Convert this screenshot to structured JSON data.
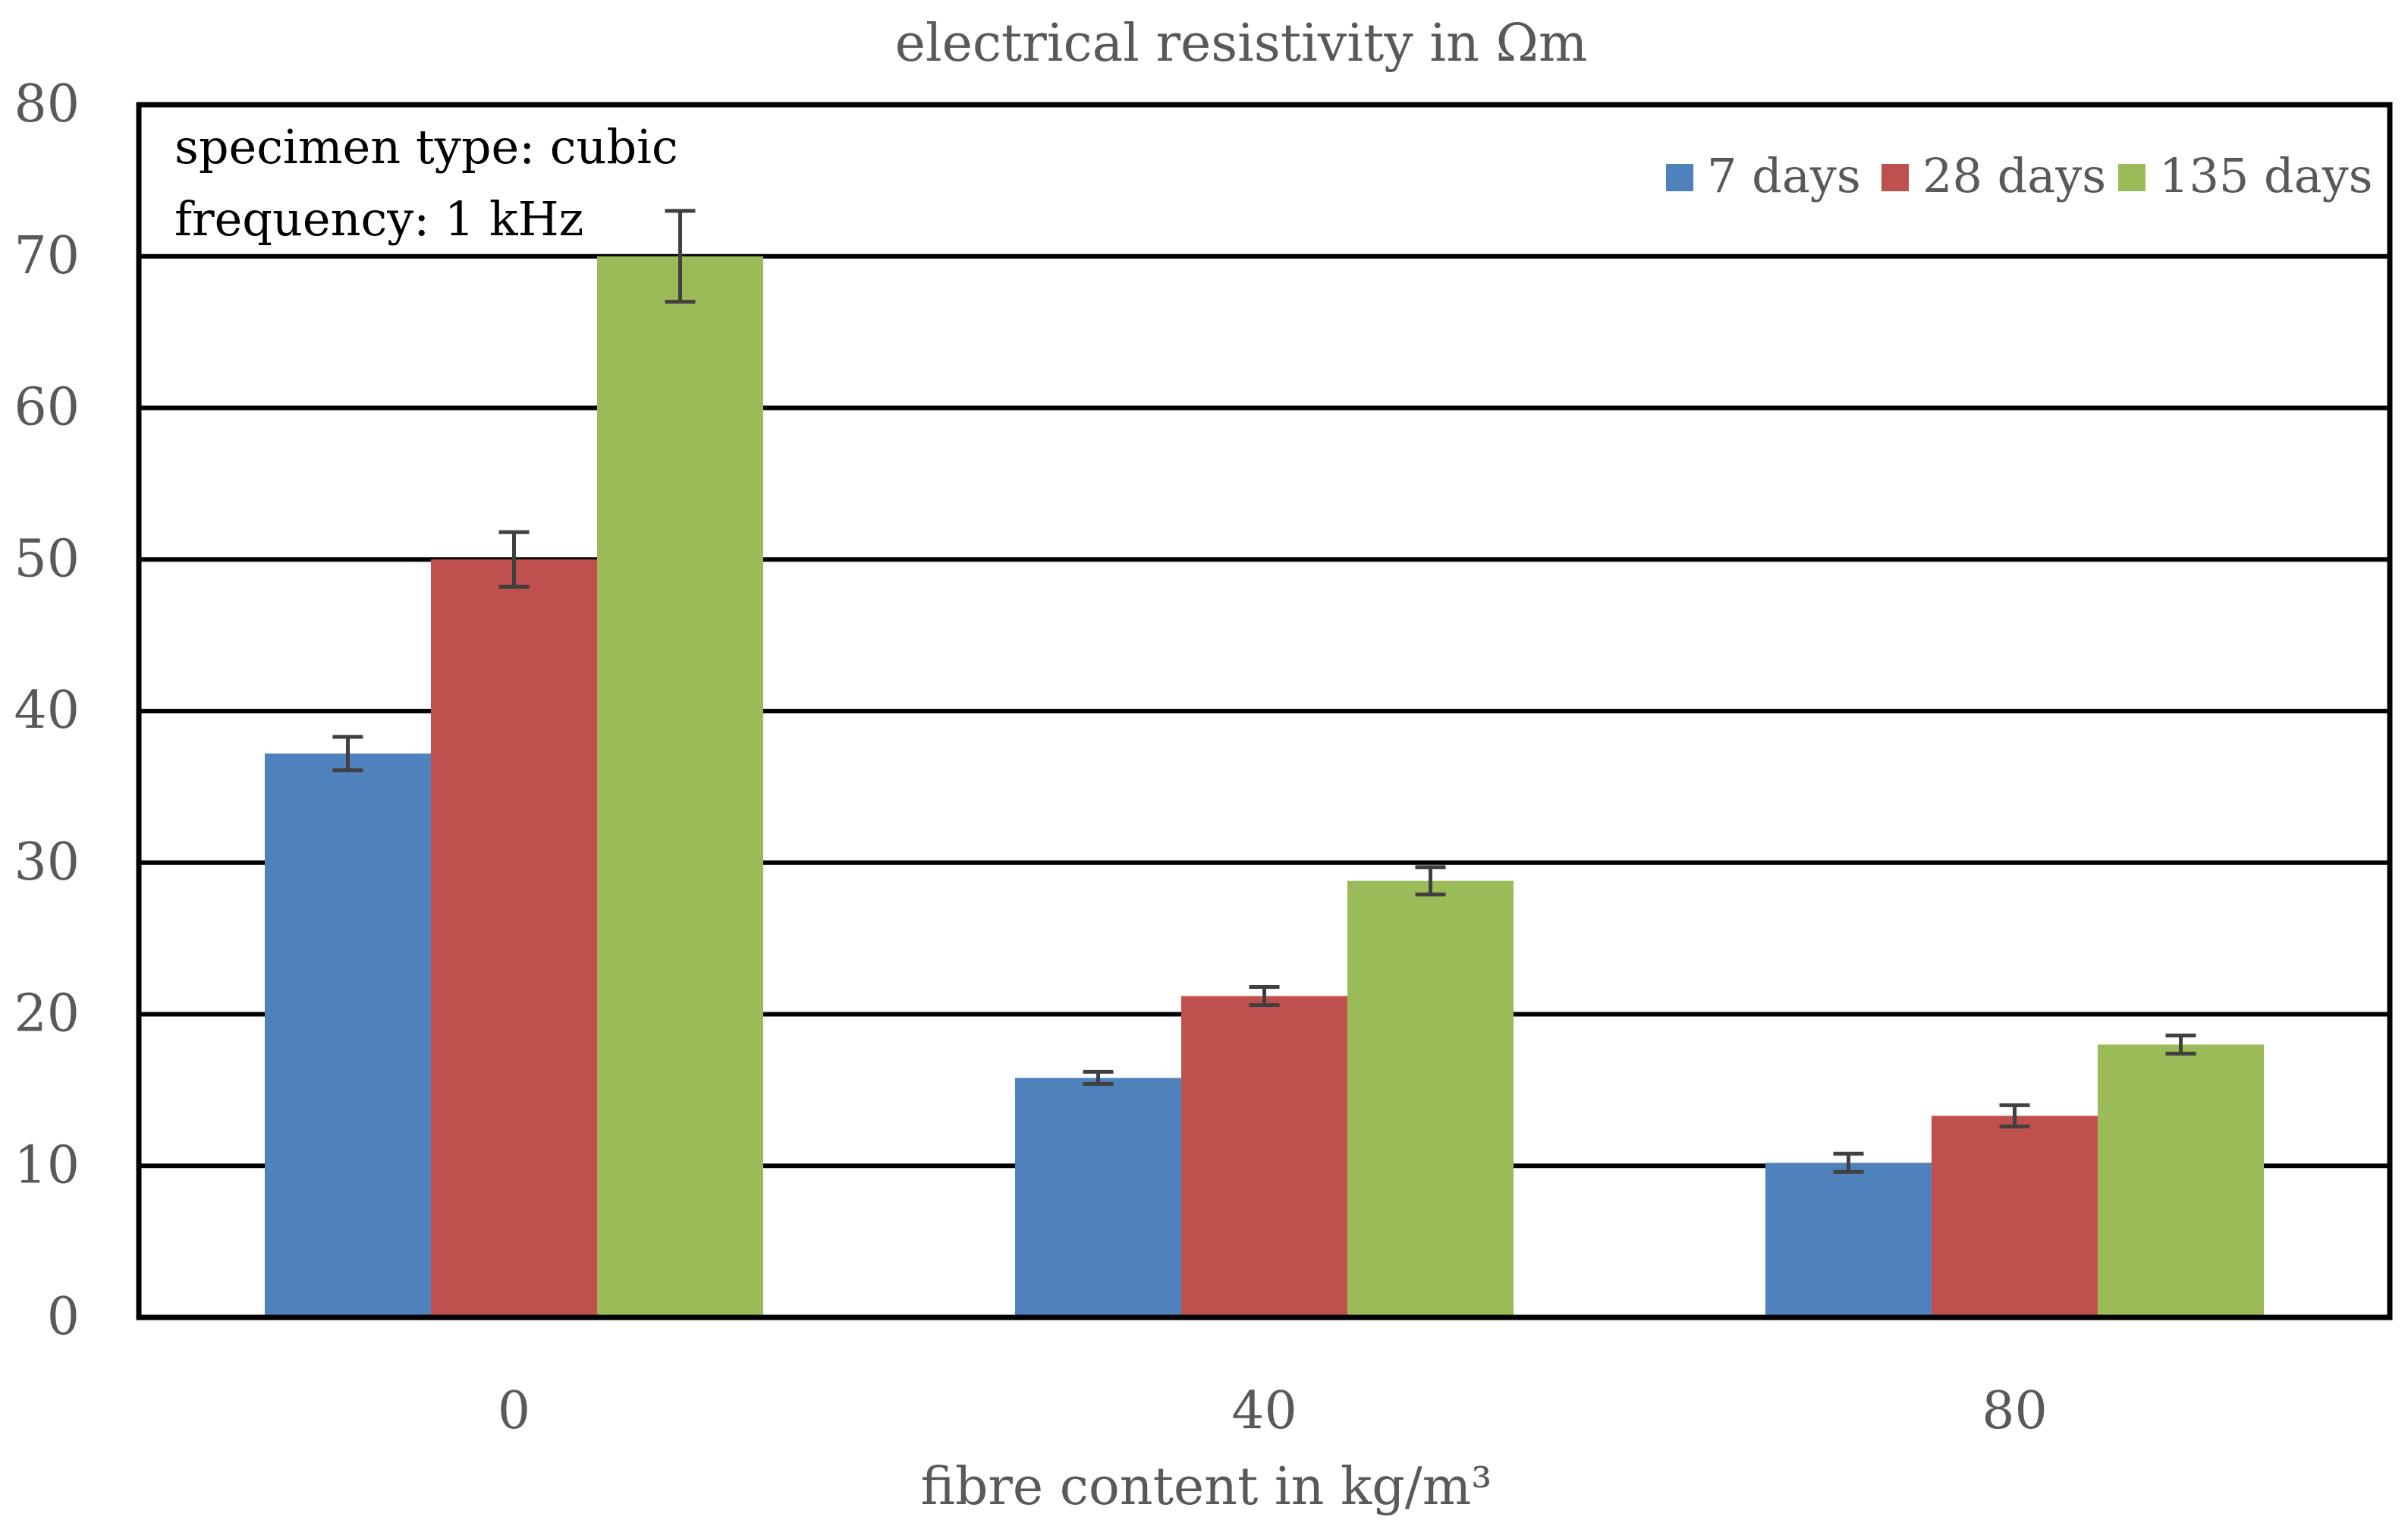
{
  "chart_data": {
    "type": "bar",
    "title": "electrical resistivity in Ωm",
    "xlabel": "fibre content in kg/m³",
    "ylabel": "",
    "categories": [
      "0",
      "40",
      "80"
    ],
    "ylim": [
      0,
      80
    ],
    "yticks": [
      "0",
      "10",
      "20",
      "30",
      "40",
      "50",
      "60",
      "70",
      "80"
    ],
    "grid": true,
    "legend_position": "top-right",
    "annotations": [
      "specimen type: cubic",
      "frequency: 1 kHz"
    ],
    "series": [
      {
        "name": "7 days",
        "color": "#4f81bd",
        "values": [
          37.2,
          15.8,
          10.2
        ],
        "errors": [
          1.1,
          0.4,
          0.6
        ]
      },
      {
        "name": "28 days",
        "color": "#c0504d",
        "values": [
          50.0,
          21.2,
          13.3
        ],
        "errors": [
          1.8,
          0.6,
          0.7
        ]
      },
      {
        "name": "135 days",
        "color": "#9bbb59",
        "values": [
          70.0,
          28.8,
          18.0
        ],
        "errors": [
          3.0,
          0.9,
          0.6
        ]
      }
    ]
  }
}
